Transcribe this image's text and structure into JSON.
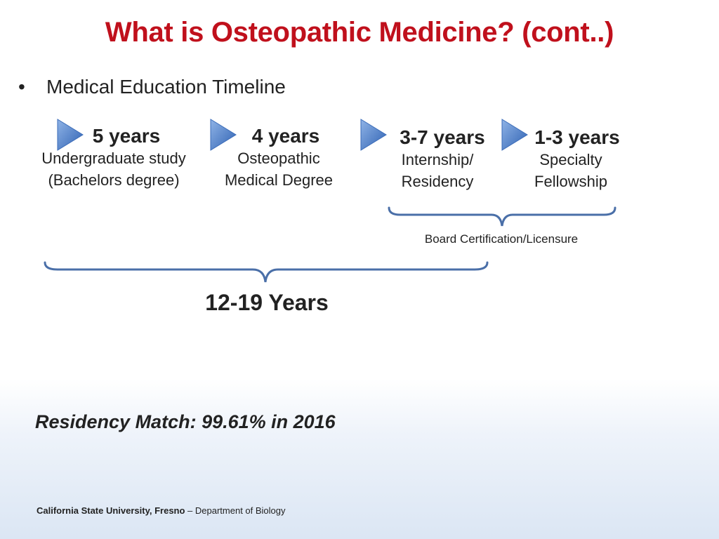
{
  "slide": {
    "title": "What is Osteopathic Medicine? (cont..)",
    "bullet": "Medical Education Timeline",
    "stages": [
      {
        "duration": "5 years",
        "line1": "Undergraduate study",
        "line2": "(Bachelors degree)"
      },
      {
        "duration": "4 years",
        "line1": "Osteopathic",
        "line2": "Medical Degree"
      },
      {
        "duration": "3-7 years",
        "line1": "Internship/",
        "line2": "Residency"
      },
      {
        "duration": "1-3 years",
        "line1": "Specialty",
        "line2": "Fellowship"
      }
    ],
    "board_label": "Board Certification/Licensure",
    "total_label": "12-19 Years",
    "match_text": "Residency Match: 99.61% in 2016",
    "footer": {
      "institution": "California State University, Fresno",
      "department": " – Department of Biology"
    }
  },
  "icons": {
    "stage_arrow": "play-triangle-icon",
    "bullet": "bullet-dot-icon"
  },
  "colors": {
    "title": "#c0101c",
    "arrow": "#4f82c9",
    "brace": "#4a6fa8"
  }
}
